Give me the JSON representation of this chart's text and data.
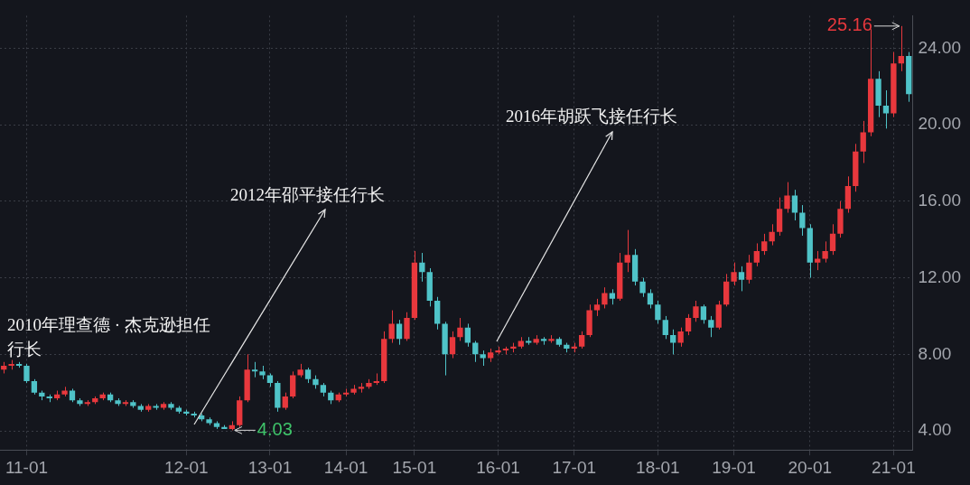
{
  "chart_data": {
    "type": "candlestick",
    "categories": [
      null,
      null,
      null,
      "11-01",
      null,
      null,
      null,
      null,
      null,
      null,
      null,
      null,
      null,
      null,
      null,
      null,
      null,
      null,
      null,
      null,
      null,
      null,
      null,
      null,
      "12-01",
      null,
      null,
      null,
      null,
      null,
      null,
      null,
      null,
      null,
      null,
      "13-01",
      null,
      null,
      null,
      null,
      null,
      null,
      null,
      null,
      null,
      "14-01",
      null,
      null,
      null,
      null,
      null,
      null,
      null,
      null,
      "15-01",
      null,
      null,
      null,
      null,
      null,
      null,
      null,
      null,
      null,
      null,
      "16-01",
      null,
      null,
      null,
      null,
      null,
      null,
      null,
      null,
      null,
      "17-01",
      null,
      null,
      null,
      null,
      null,
      null,
      null,
      null,
      null,
      null,
      "18-01",
      null,
      null,
      null,
      null,
      null,
      null,
      null,
      null,
      null,
      "19-01",
      null,
      null,
      null,
      null,
      null,
      null,
      null,
      null,
      null,
      "20-01",
      null,
      null,
      null,
      null,
      null,
      null,
      null,
      null,
      null,
      null,
      "21-01",
      null,
      null
    ],
    "ohlc": [
      [
        7.2,
        7.6,
        7.0,
        7.4
      ],
      [
        7.4,
        7.7,
        7.2,
        7.5
      ],
      [
        7.5,
        7.6,
        7.3,
        7.4
      ],
      [
        7.4,
        7.5,
        6.5,
        6.6
      ],
      [
        6.6,
        6.7,
        5.9,
        6.0
      ],
      [
        6.0,
        6.1,
        5.6,
        5.8
      ],
      [
        5.8,
        5.9,
        5.5,
        5.7
      ],
      [
        5.7,
        6.1,
        5.6,
        5.9
      ],
      [
        5.9,
        6.3,
        5.8,
        6.1
      ],
      [
        6.1,
        6.2,
        5.5,
        5.6
      ],
      [
        5.6,
        5.7,
        5.3,
        5.4
      ],
      [
        5.4,
        5.6,
        5.3,
        5.5
      ],
      [
        5.5,
        5.8,
        5.4,
        5.7
      ],
      [
        5.7,
        6.0,
        5.6,
        5.9
      ],
      [
        5.9,
        6.0,
        5.5,
        5.6
      ],
      [
        5.6,
        5.7,
        5.3,
        5.4
      ],
      [
        5.4,
        5.6,
        5.3,
        5.5
      ],
      [
        5.5,
        5.6,
        5.2,
        5.3
      ],
      [
        5.3,
        5.4,
        5.0,
        5.1
      ],
      [
        5.1,
        5.4,
        5.0,
        5.3
      ],
      [
        5.3,
        5.4,
        5.1,
        5.2
      ],
      [
        5.2,
        5.5,
        5.1,
        5.4
      ],
      [
        5.4,
        5.5,
        5.1,
        5.2
      ],
      [
        5.2,
        5.3,
        4.9,
        5.0
      ],
      [
        5.0,
        5.1,
        4.8,
        4.9
      ],
      [
        4.9,
        5.0,
        4.7,
        4.8
      ],
      [
        4.8,
        4.9,
        4.5,
        4.6
      ],
      [
        4.6,
        4.7,
        4.3,
        4.4
      ],
      [
        4.4,
        4.5,
        4.1,
        4.2
      ],
      [
        4.2,
        4.3,
        4.1,
        4.1
      ],
      [
        4.1,
        4.5,
        4.03,
        4.3
      ],
      [
        4.3,
        5.8,
        4.2,
        5.6
      ],
      [
        5.6,
        8.0,
        5.5,
        7.2
      ],
      [
        7.2,
        7.6,
        6.8,
        7.1
      ],
      [
        7.1,
        7.4,
        6.7,
        6.9
      ],
      [
        6.9,
        7.0,
        6.3,
        6.5
      ],
      [
        6.5,
        6.6,
        5.0,
        5.2
      ],
      [
        5.2,
        6.0,
        5.1,
        5.8
      ],
      [
        5.8,
        7.1,
        5.7,
        6.9
      ],
      [
        6.9,
        7.5,
        6.8,
        7.2
      ],
      [
        7.2,
        7.3,
        6.5,
        6.7
      ],
      [
        6.7,
        6.9,
        6.2,
        6.4
      ],
      [
        6.4,
        6.5,
        5.8,
        6.0
      ],
      [
        6.0,
        6.1,
        5.4,
        5.6
      ],
      [
        5.6,
        6.0,
        5.5,
        5.9
      ],
      [
        5.9,
        6.2,
        5.8,
        6.0
      ],
      [
        6.0,
        6.4,
        5.9,
        6.2
      ],
      [
        6.2,
        6.5,
        6.0,
        6.3
      ],
      [
        6.3,
        6.7,
        6.2,
        6.5
      ],
      [
        6.5,
        7.0,
        6.4,
        6.6
      ],
      [
        6.6,
        9.2,
        6.5,
        8.8
      ],
      [
        8.8,
        10.3,
        8.6,
        9.6
      ],
      [
        9.6,
        9.8,
        8.5,
        8.8
      ],
      [
        8.8,
        10.2,
        8.7,
        9.9
      ],
      [
        9.9,
        13.4,
        9.8,
        12.8
      ],
      [
        12.8,
        13.3,
        11.8,
        12.3
      ],
      [
        12.3,
        12.5,
        10.5,
        10.8
      ],
      [
        10.8,
        11.0,
        9.3,
        9.6
      ],
      [
        9.6,
        9.7,
        6.9,
        8.0
      ],
      [
        8.0,
        9.2,
        7.8,
        8.9
      ],
      [
        8.9,
        9.9,
        8.7,
        9.4
      ],
      [
        9.4,
        9.6,
        8.4,
        8.6
      ],
      [
        8.6,
        8.7,
        7.6,
        8.0
      ],
      [
        8.0,
        8.2,
        7.4,
        7.8
      ],
      [
        7.8,
        8.3,
        7.6,
        8.1
      ],
      [
        8.1,
        8.4,
        8.0,
        8.2
      ],
      [
        8.2,
        8.4,
        8.0,
        8.3
      ],
      [
        8.3,
        8.6,
        8.1,
        8.4
      ],
      [
        8.4,
        8.9,
        8.3,
        8.7
      ],
      [
        8.7,
        8.9,
        8.5,
        8.6
      ],
      [
        8.6,
        9.0,
        8.5,
        8.8
      ],
      [
        8.8,
        8.9,
        8.5,
        8.7
      ],
      [
        8.7,
        9.0,
        8.6,
        8.8
      ],
      [
        8.8,
        8.9,
        8.4,
        8.5
      ],
      [
        8.5,
        8.6,
        8.1,
        8.3
      ],
      [
        8.3,
        8.6,
        8.1,
        8.4
      ],
      [
        8.4,
        9.2,
        8.3,
        9.0
      ],
      [
        9.0,
        10.6,
        8.9,
        10.3
      ],
      [
        10.3,
        10.9,
        10.0,
        10.6
      ],
      [
        10.6,
        11.5,
        10.4,
        11.2
      ],
      [
        11.2,
        11.4,
        10.6,
        10.9
      ],
      [
        10.9,
        13.3,
        10.8,
        12.8
      ],
      [
        12.8,
        14.5,
        12.3,
        13.2
      ],
      [
        13.2,
        13.5,
        11.6,
        11.8
      ],
      [
        11.8,
        12.0,
        11.0,
        11.2
      ],
      [
        11.2,
        11.4,
        10.4,
        10.6
      ],
      [
        10.6,
        10.8,
        9.6,
        9.8
      ],
      [
        9.8,
        10.0,
        8.8,
        9.0
      ],
      [
        9.0,
        9.3,
        8.0,
        8.6
      ],
      [
        8.6,
        9.4,
        8.4,
        9.2
      ],
      [
        9.2,
        10.1,
        9.0,
        9.9
      ],
      [
        9.9,
        10.8,
        9.7,
        10.5
      ],
      [
        10.5,
        10.6,
        9.6,
        9.8
      ],
      [
        9.8,
        10.0,
        8.9,
        9.4
      ],
      [
        9.4,
        10.8,
        9.3,
        10.6
      ],
      [
        10.6,
        12.2,
        10.5,
        11.8
      ],
      [
        11.8,
        12.8,
        11.6,
        12.3
      ],
      [
        12.3,
        12.6,
        11.3,
        11.9
      ],
      [
        11.9,
        13.2,
        11.7,
        12.8
      ],
      [
        12.8,
        13.8,
        12.6,
        13.4
      ],
      [
        13.4,
        14.3,
        13.2,
        13.9
      ],
      [
        13.9,
        14.8,
        13.7,
        14.4
      ],
      [
        14.4,
        16.2,
        14.2,
        15.6
      ],
      [
        15.6,
        17.0,
        15.4,
        16.3
      ],
      [
        16.3,
        16.6,
        15.0,
        15.4
      ],
      [
        15.4,
        15.8,
        14.2,
        14.6
      ],
      [
        14.6,
        14.8,
        12.0,
        12.8
      ],
      [
        12.8,
        13.4,
        12.4,
        13.0
      ],
      [
        13.0,
        13.9,
        12.8,
        13.4
      ],
      [
        13.4,
        14.8,
        13.2,
        14.3
      ],
      [
        14.3,
        16.0,
        14.1,
        15.6
      ],
      [
        15.6,
        17.3,
        15.4,
        16.8
      ],
      [
        16.8,
        19.0,
        16.5,
        18.6
      ],
      [
        18.6,
        20.2,
        18.0,
        19.6
      ],
      [
        19.6,
        25.0,
        19.4,
        22.4
      ],
      [
        22.4,
        22.8,
        20.4,
        21.0
      ],
      [
        21.0,
        21.8,
        19.8,
        20.6
      ],
      [
        20.6,
        23.8,
        20.4,
        23.2
      ],
      [
        23.2,
        25.16,
        22.8,
        23.6
      ],
      [
        23.6,
        23.8,
        21.2,
        21.6
      ]
    ],
    "colors": [
      "#e8383d",
      "#e8383d",
      "#4fc3c8",
      "#4fc3c8",
      "#4fc3c8",
      "#4fc3c8",
      "#4fc3c8",
      "#e8383d",
      "#e8383d",
      "#4fc3c8",
      "#4fc3c8",
      "#e8383d",
      "#e8383d",
      "#e8383d",
      "#4fc3c8",
      "#4fc3c8",
      "#e8383d",
      "#4fc3c8",
      "#4fc3c8",
      "#e8383d",
      "#4fc3c8",
      "#e8383d",
      "#4fc3c8",
      "#4fc3c8",
      "#4fc3c8",
      "#4fc3c8",
      "#4fc3c8",
      "#4fc3c8",
      "#4fc3c8",
      "#4fc3c8",
      "#e8383d",
      "#e8383d",
      "#e8383d",
      "#4fc3c8",
      "#4fc3c8",
      "#4fc3c8",
      "#4fc3c8",
      "#e8383d",
      "#e8383d",
      "#e8383d",
      "#4fc3c8",
      "#4fc3c8",
      "#4fc3c8",
      "#4fc3c8",
      "#e8383d",
      "#e8383d",
      "#e8383d",
      "#e8383d",
      "#e8383d",
      "#e8383d",
      "#e8383d",
      "#e8383d",
      "#4fc3c8",
      "#e8383d",
      "#e8383d",
      "#4fc3c8",
      "#4fc3c8",
      "#4fc3c8",
      "#4fc3c8",
      "#e8383d",
      "#e8383d",
      "#4fc3c8",
      "#4fc3c8",
      "#4fc3c8",
      "#e8383d",
      "#e8383d",
      "#e8383d",
      "#e8383d",
      "#e8383d",
      "#4fc3c8",
      "#e8383d",
      "#4fc3c8",
      "#e8383d",
      "#4fc3c8",
      "#4fc3c8",
      "#e8383d",
      "#e8383d",
      "#e8383d",
      "#e8383d",
      "#e8383d",
      "#4fc3c8",
      "#e8383d",
      "#e8383d",
      "#4fc3c8",
      "#4fc3c8",
      "#4fc3c8",
      "#4fc3c8",
      "#4fc3c8",
      "#4fc3c8",
      "#e8383d",
      "#e8383d",
      "#e8383d",
      "#4fc3c8",
      "#4fc3c8",
      "#e8383d",
      "#e8383d",
      "#e8383d",
      "#4fc3c8",
      "#e8383d",
      "#e8383d",
      "#e8383d",
      "#e8383d",
      "#e8383d",
      "#e8383d",
      "#4fc3c8",
      "#4fc3c8",
      "#4fc3c8",
      "#e8383d",
      "#e8383d",
      "#e8383d",
      "#e8383d",
      "#e8383d",
      "#e8383d",
      "#e8383d",
      "#e8383d",
      "#4fc3c8",
      "#4fc3c8",
      "#e8383d",
      "#e8383d",
      "#4fc3c8"
    ],
    "ylim": [
      3,
      25.7
    ],
    "yticks": [
      {
        "value": 4,
        "label": "4.00"
      },
      {
        "value": 8,
        "label": "8.00"
      },
      {
        "value": 12,
        "label": "12.00"
      },
      {
        "value": 16,
        "label": "16.00"
      },
      {
        "value": 20,
        "label": "20.00"
      },
      {
        "value": 24,
        "label": "24.00"
      }
    ],
    "grid": true,
    "annotations": [
      "2010年理查德 · 杰克逊担任行长",
      "2012年邵平接任行长",
      "2016年胡跃飞接任行长",
      "4.03",
      "25.16"
    ]
  }
}
